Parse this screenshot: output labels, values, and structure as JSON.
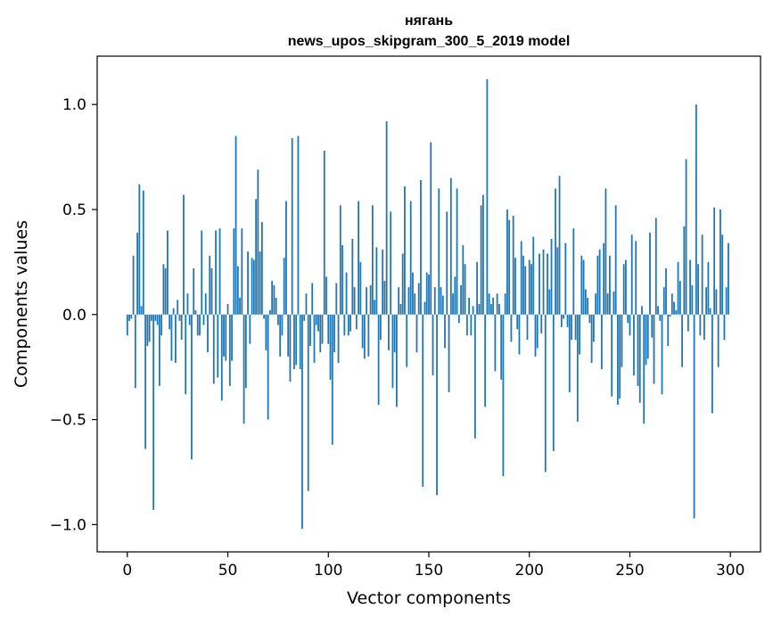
{
  "chart_data": {
    "type": "bar",
    "title_line1": "нягань",
    "title_line2": "news_upos_skipgram_300_5_2019 model",
    "xlabel": "Vector components",
    "ylabel": "Components values",
    "xlim": [
      -15,
      315
    ],
    "ylim": [
      -1.13,
      1.23
    ],
    "x_ticks": [
      0,
      50,
      100,
      150,
      200,
      250,
      300
    ],
    "x_tick_labels": [
      "0",
      "50",
      "100",
      "150",
      "200",
      "250",
      "300"
    ],
    "y_ticks": [
      -1.0,
      -0.5,
      0.0,
      0.5,
      1.0
    ],
    "y_tick_labels": [
      "−1.0",
      "−0.5",
      "0.0",
      "0.5",
      "1.0"
    ],
    "bar_color": "#1f77b4",
    "values": [
      -0.1,
      -0.03,
      -0.02,
      0.28,
      -0.35,
      0.39,
      0.62,
      0.04,
      0.59,
      -0.64,
      -0.15,
      -0.13,
      -0.03,
      -0.93,
      -0.03,
      -0.05,
      -0.34,
      -0.1,
      0.24,
      0.22,
      0.4,
      -0.07,
      -0.22,
      0.03,
      -0.23,
      0.07,
      -0.03,
      -0.12,
      0.57,
      -0.38,
      0.1,
      -0.05,
      -0.69,
      0.22,
      0.02,
      -0.1,
      -0.1,
      0.4,
      -0.05,
      0.1,
      -0.18,
      0.28,
      0.22,
      -0.33,
      0.4,
      -0.3,
      0.41,
      -0.41,
      -0.2,
      -0.22,
      0.05,
      -0.34,
      -0.22,
      0.41,
      0.85,
      0.23,
      0.08,
      0.41,
      -0.52,
      -0.35,
      0.3,
      -0.14,
      0.27,
      0.26,
      0.55,
      0.69,
      0.3,
      0.44,
      -0.02,
      -0.17,
      -0.5,
      0.02,
      0.16,
      0.14,
      0.08,
      -0.05,
      -0.2,
      -0.1,
      0.27,
      0.54,
      -0.2,
      -0.32,
      0.84,
      -0.26,
      -0.24,
      0.85,
      -0.26,
      -1.02,
      -0.03,
      0.1,
      -0.84,
      -0.15,
      0.15,
      -0.23,
      -0.05,
      -0.08,
      -0.18,
      -0.14,
      0.78,
      0.18,
      -0.14,
      -0.31,
      -0.62,
      -0.18,
      0.15,
      -0.23,
      0.52,
      0.33,
      -0.1,
      0.2,
      -0.1,
      -0.08,
      0.36,
      0.13,
      -0.07,
      0.54,
      0.25,
      -0.16,
      -0.21,
      0.13,
      -0.2,
      0.14,
      0.52,
      0.07,
      0.32,
      -0.43,
      -0.12,
      0.31,
      0.16,
      0.92,
      -0.17,
      0.49,
      -0.35,
      -0.18,
      -0.44,
      0.13,
      0.05,
      0.29,
      0.61,
      -0.25,
      0.13,
      0.54,
      0.2,
      0.1,
      -0.18,
      0.15,
      0.64,
      -0.82,
      0.06,
      0.2,
      0.19,
      0.82,
      -0.29,
      0.13,
      -0.86,
      0.6,
      0.13,
      0.09,
      -0.16,
      0.49,
      -0.37,
      0.65,
      0.1,
      0.18,
      0.6,
      -0.04,
      0.14,
      0.33,
      0.24,
      -0.1,
      0.08,
      -0.1,
      0.04,
      -0.59,
      0.25,
      0.05,
      0.52,
      0.57,
      -0.44,
      1.12,
      0.1,
      0.05,
      0.08,
      -0.27,
      0.1,
      0.05,
      -0.31,
      -0.77,
      0.1,
      0.5,
      0.45,
      -0.13,
      0.47,
      0.27,
      -0.07,
      -0.19,
      0.35,
      0.28,
      0.23,
      -0.12,
      0.26,
      0.24,
      0.37,
      -0.2,
      -0.16,
      0.29,
      -0.09,
      0.31,
      -0.75,
      0.29,
      0.12,
      0.36,
      -0.65,
      0.6,
      0.32,
      0.66,
      -0.06,
      -0.02,
      0.34,
      -0.06,
      -0.37,
      -0.12,
      0.41,
      -0.12,
      -0.51,
      -0.19,
      0.28,
      0.26,
      0.12,
      0.08,
      -0.04,
      -0.23,
      -0.13,
      0.1,
      0.28,
      0.31,
      -0.26,
      0.34,
      0.6,
      0.1,
      0.28,
      -0.39,
      0.11,
      0.52,
      -0.43,
      -0.4,
      -0.25,
      0.24,
      0.26,
      -0.04,
      -0.1,
      0.38,
      -0.29,
      0.35,
      -0.34,
      -0.42,
      0.04,
      -0.52,
      -0.24,
      -0.21,
      0.39,
      -0.11,
      -0.33,
      0.46,
      0.04,
      -0.03,
      -0.38,
      0.13,
      0.22,
      -0.15,
      -0.01,
      0.1,
      0.06,
      0.02,
      0.25,
      0.16,
      -0.25,
      0.42,
      0.74,
      -0.08,
      0.26,
      0.14,
      -0.97,
      1.0,
      0.24,
      -0.1,
      0.38,
      -0.12,
      0.13,
      0.25,
      0.03,
      -0.47,
      0.51,
      0.12,
      -0.25,
      0.5,
      0.38,
      -0.12,
      0.13,
      0.34
    ]
  }
}
